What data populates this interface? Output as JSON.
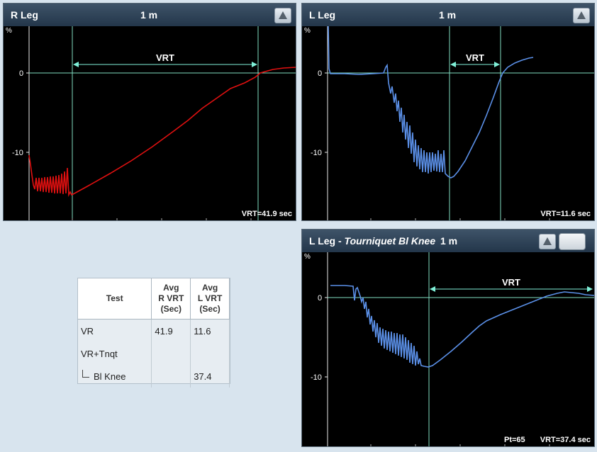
{
  "panels": {
    "r_leg": {
      "title": "R Leg",
      "time_span": "1 m",
      "y_unit": "%",
      "y_ticks": [
        "0",
        "-10"
      ],
      "vrt_label": "VRT",
      "footer": "VRT=41.9 sec",
      "trace_color": "#e01010"
    },
    "l_leg": {
      "title": "L Leg",
      "time_span": "1 m",
      "y_unit": "%",
      "y_ticks": [
        "0",
        "-10"
      ],
      "vrt_label": "VRT",
      "footer": "VRT=11.6 sec",
      "trace_color": "#5b90e8"
    },
    "l_leg_tourniquet": {
      "title": "L Leg - ",
      "title_italic": "Tourniquet Bl Knee",
      "time_span": "1 m",
      "y_unit": "%",
      "y_ticks": [
        "0",
        "-10"
      ],
      "vrt_label": "VRT",
      "footer_pt": "Pt=65",
      "footer": "VRT=37.4 sec",
      "trace_color": "#5b90e8"
    }
  },
  "results_table": {
    "headers": [
      "Test",
      "Avg\nR VRT\n(Sec)",
      "Avg\nL VRT\n(Sec)"
    ],
    "rows": [
      {
        "test": "VR",
        "r": "41.9",
        "l": "11.6"
      },
      {
        "test": "VR+Tnqt",
        "r": "",
        "l": ""
      },
      {
        "test": "Bl Knee",
        "r": "",
        "l": "37.4"
      }
    ]
  },
  "colors": {
    "grid_line": "#7fdcc0",
    "vrt_arrow": "#7ff0d8",
    "panel_bg": "#000000",
    "header_bg": "#2e4257"
  }
}
